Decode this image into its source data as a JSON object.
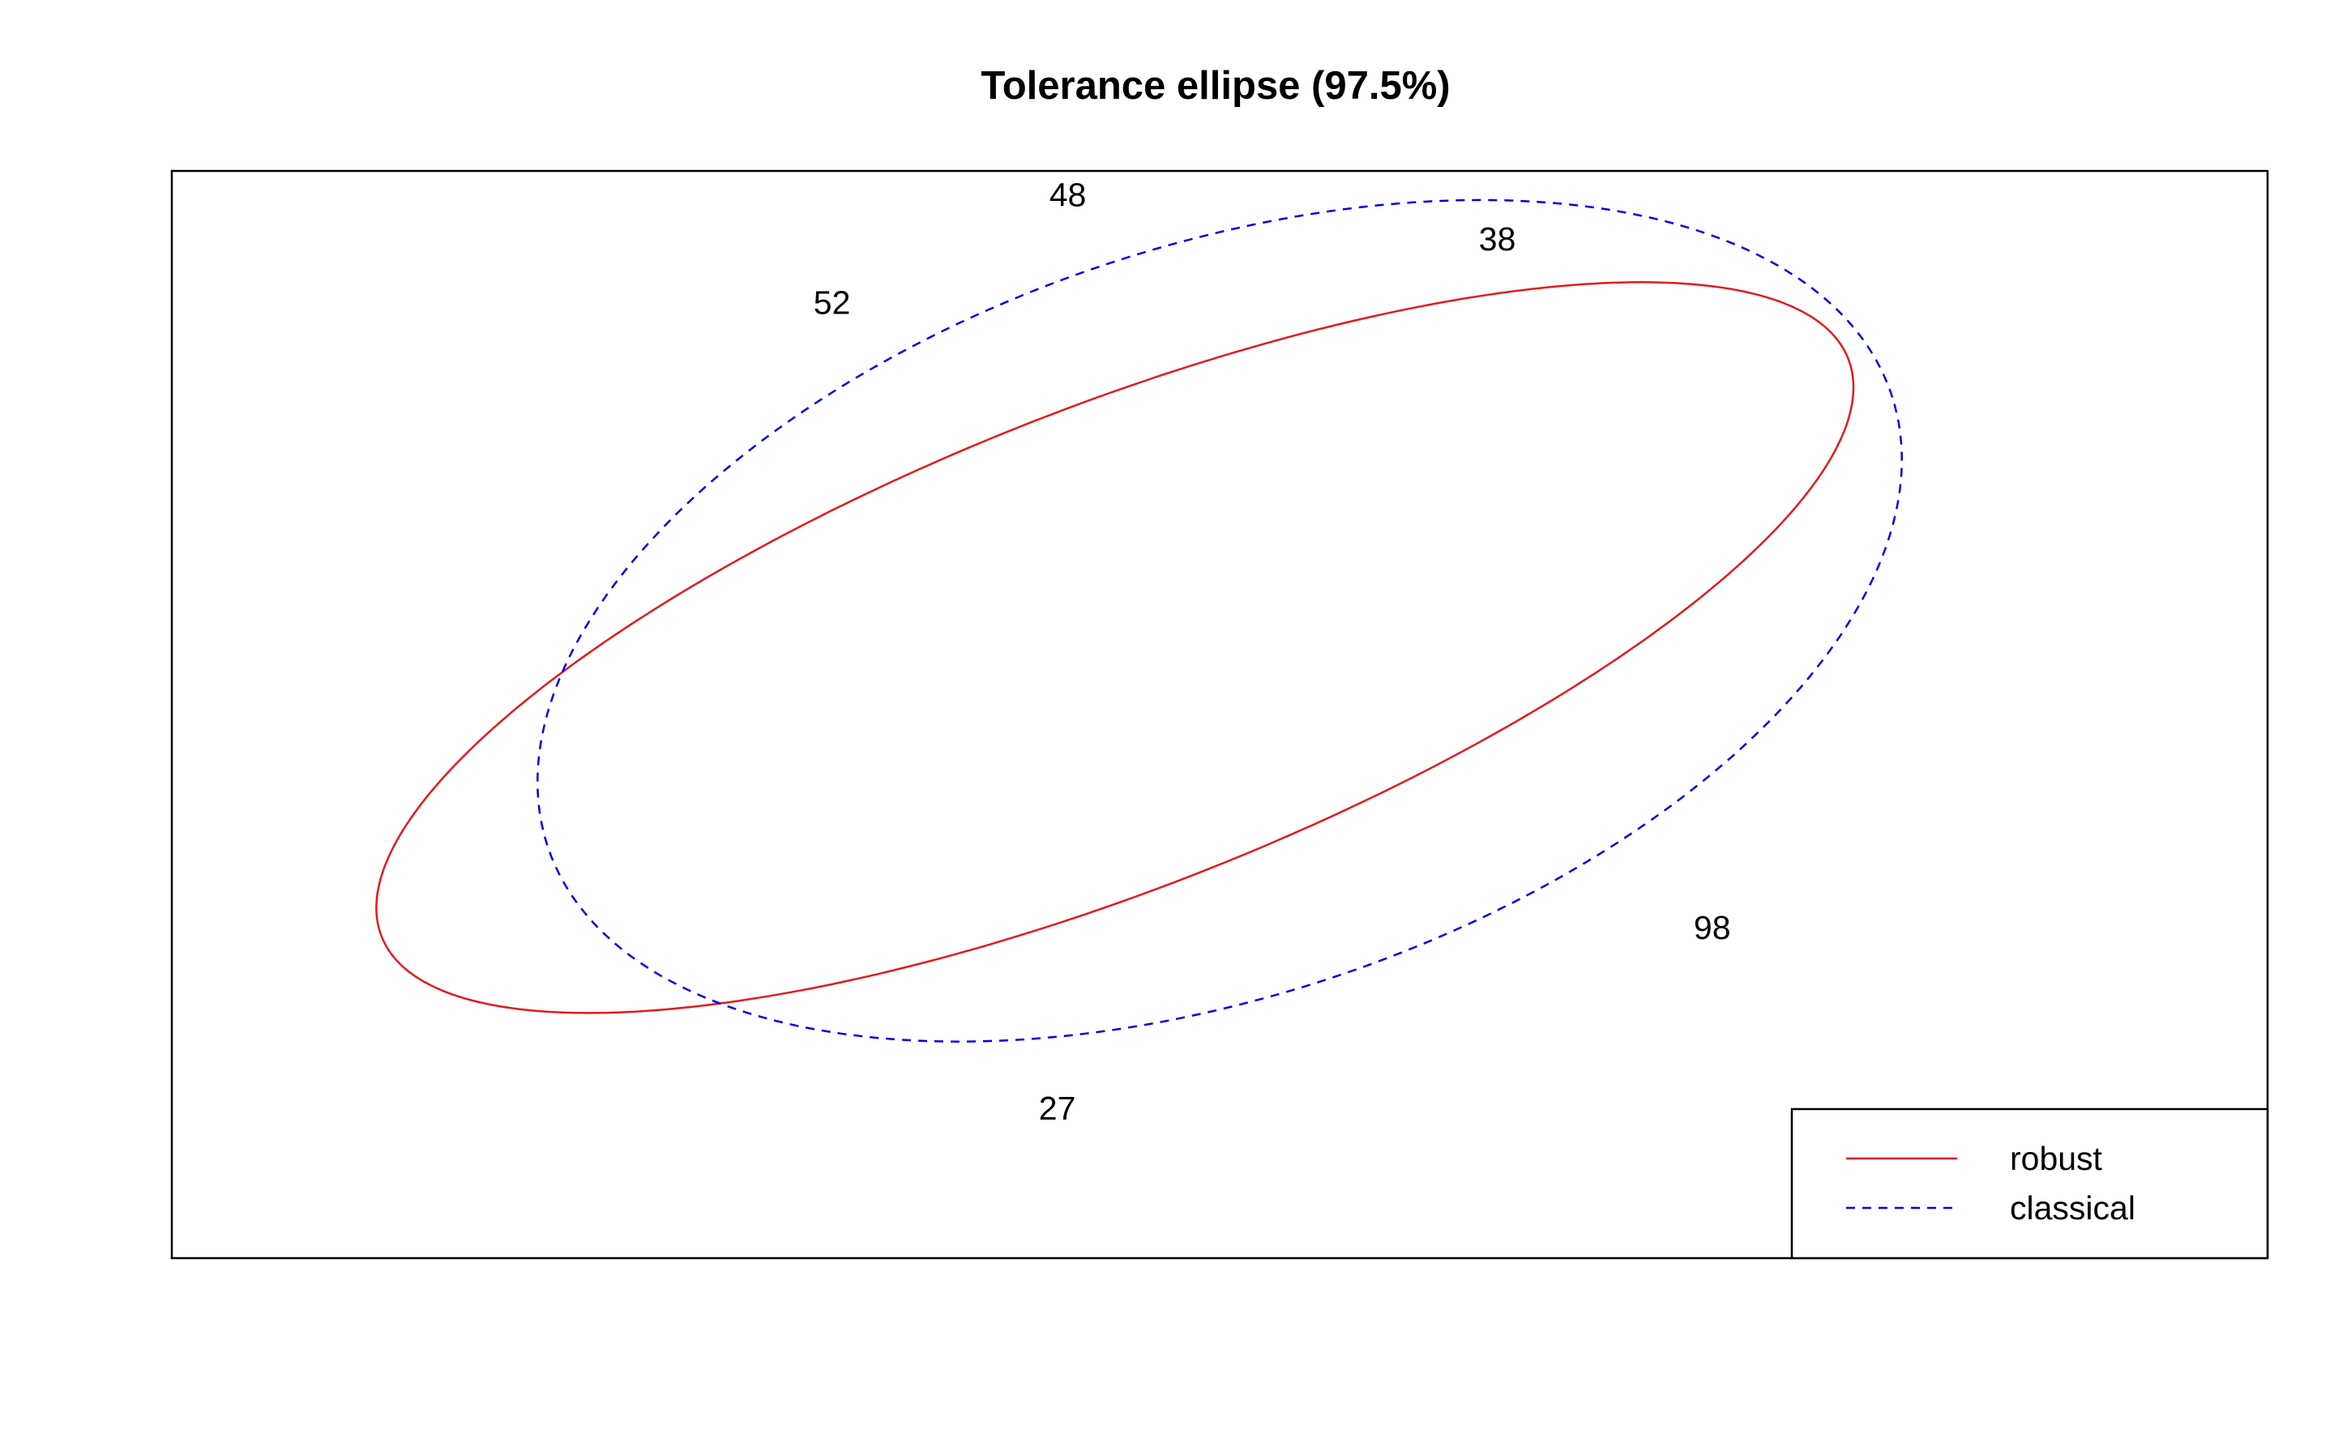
{
  "chart_data": {
    "type": "line",
    "title": "Tolerance ellipse (97.5%)",
    "xlabel": "",
    "ylabel": "",
    "grid": false,
    "axes_shown": false,
    "legend_position": "bottom-right",
    "series": [
      {
        "name": "robust",
        "shape": "ellipse",
        "color": "#e41a1c",
        "line_style": "solid",
        "center": [
          0,
          0
        ],
        "semi_axes": [
          1.5,
          0.45
        ],
        "rotation_deg": 21
      },
      {
        "name": "classical",
        "shape": "ellipse",
        "color": "#0000ee",
        "line_style": "dashed",
        "center": [
          0.2,
          0.05
        ],
        "semi_axes": [
          1.35,
          0.7
        ],
        "rotation_deg": 18
      }
    ],
    "point_labels": [
      {
        "label": "48",
        "x": -0.09,
        "y": 0.845
      },
      {
        "label": "38",
        "x": 0.73,
        "y": 0.763
      },
      {
        "label": "52",
        "x": -0.54,
        "y": 0.644
      },
      {
        "label": "98",
        "x": 1.14,
        "y": -0.523
      },
      {
        "label": "27",
        "x": -0.11,
        "y": -0.86
      }
    ],
    "xlim": [
      -1.8,
      2.2
    ],
    "ylim": [
      -1.14,
      0.89
    ]
  }
}
